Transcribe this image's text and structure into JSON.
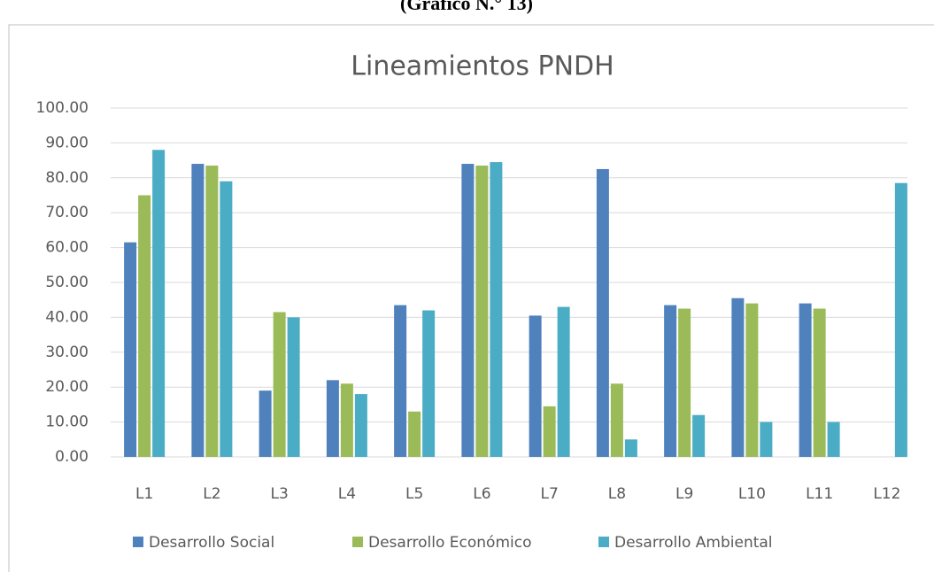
{
  "caption": "(Gráfico N.° 13)",
  "chart_data": {
    "type": "bar",
    "title": "Lineamientos PNDH",
    "categories": [
      "L1",
      "L2",
      "L3",
      "L4",
      "L5",
      "L6",
      "L7",
      "L8",
      "L9",
      "L10",
      "L11",
      "L12"
    ],
    "series": [
      {
        "name": "Desarrollo Social",
        "color": "#4f81bd",
        "values": [
          61.5,
          84,
          19,
          22,
          43.5,
          84,
          40.5,
          82.5,
          43.5,
          45.5,
          44,
          null
        ]
      },
      {
        "name": "Desarrollo Económico",
        "color": "#9bbb59",
        "values": [
          75,
          83.5,
          41.5,
          21,
          13,
          83.5,
          14.5,
          21,
          42.5,
          44,
          42.5,
          null
        ]
      },
      {
        "name": "Desarrollo Ambiental",
        "color": "#4bacc6",
        "values": [
          88,
          79,
          40,
          18,
          42,
          84.5,
          43,
          5,
          12,
          10,
          10,
          78.5
        ]
      }
    ],
    "ylim": [
      0,
      100
    ],
    "yticks": [
      {
        "value": 0,
        "label": "0.00"
      },
      {
        "value": 10,
        "label": "10.00"
      },
      {
        "value": 20,
        "label": "20.00"
      },
      {
        "value": 30,
        "label": "30.00"
      },
      {
        "value": 40,
        "label": "40.00"
      },
      {
        "value": 50,
        "label": "50.00"
      },
      {
        "value": 60,
        "label": "60.00"
      },
      {
        "value": 70,
        "label": "70.00"
      },
      {
        "value": 80,
        "label": "80.00"
      },
      {
        "value": 90,
        "label": "90.00"
      },
      {
        "value": 100,
        "label": "100.00"
      }
    ],
    "grid": true,
    "legend": "bottom"
  }
}
